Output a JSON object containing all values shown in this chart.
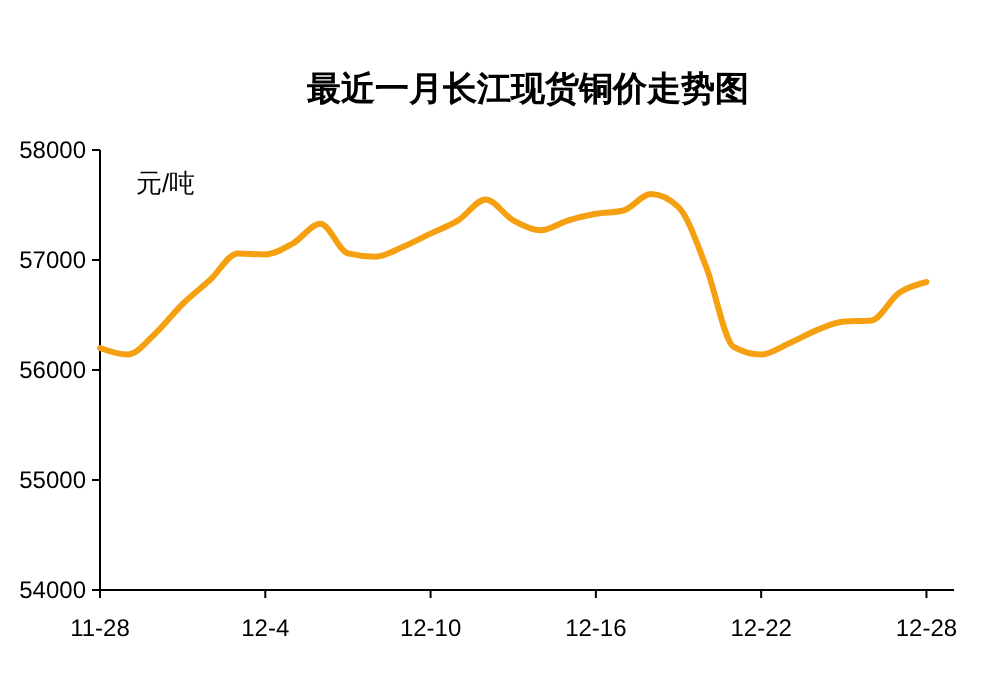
{
  "chart_data": {
    "type": "line",
    "title": "最近一月长江现货铜价走势图",
    "ylabel": "元/吨",
    "x": [
      "--11-28",
      "--11-29",
      "--11-30",
      "--12-01",
      "--12-02",
      "--12-03",
      "--12-04",
      "--12-05",
      "--12-06",
      "--12-07",
      "--12-08",
      "--12-09",
      "--12-10",
      "--12-11",
      "--12-12",
      "--12-13",
      "--12-14",
      "--12-15",
      "--12-16",
      "--12-17",
      "--12-18",
      "--12-19",
      "--12-20",
      "--12-21",
      "--12-22",
      "--12-23",
      "--12-24",
      "--12-25",
      "--12-26",
      "--12-27",
      "--12-28"
    ],
    "series": [
      {
        "color": "#f5a010",
        "values": [
          56200,
          56140,
          56330,
          56600,
          56820,
          57060,
          57050,
          57150,
          57330,
          57060,
          57030,
          57120,
          57240,
          57360,
          57550,
          57360,
          57270,
          57360,
          57420,
          57450,
          57600,
          57480,
          56940,
          56210,
          56140,
          56240,
          56360,
          56440,
          56450,
          56700,
          56800
        ]
      }
    ],
    "xlim": [
      "--11-28",
      "--12-29"
    ],
    "xticks": [
      {
        "value": "--11-28",
        "label": "11-28"
      },
      {
        "value": "--12-04",
        "label": "12-4"
      },
      {
        "value": "--12-10",
        "label": "12-10"
      },
      {
        "value": "--12-16",
        "label": "12-16"
      },
      {
        "value": "--12-22",
        "label": "12-22"
      },
      {
        "value": "--12-28",
        "label": "12-28"
      }
    ],
    "ylim": [
      54000,
      58000
    ],
    "yticks": [
      54000,
      55000,
      56000,
      57000,
      58000
    ],
    "grid": false,
    "marker": "none",
    "line_style": "solid"
  }
}
